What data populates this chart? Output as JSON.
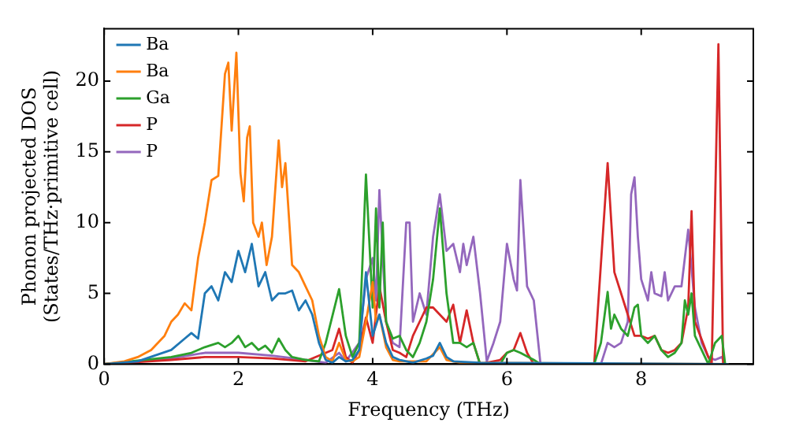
{
  "chart_data": {
    "type": "line",
    "xlabel": "Frequency (THz)",
    "ylabel": "Phonon projected DOS\n(States/THz·primitive cell)",
    "xlim": [
      0,
      9.67
    ],
    "ylim": [
      0,
      23.7
    ],
    "xticks": [
      0,
      2,
      4,
      6,
      8
    ],
    "yticks": [
      0,
      5,
      10,
      15,
      20
    ],
    "grid": false,
    "legend": "top left",
    "marker": "none",
    "line_style": "solid",
    "series": [
      {
        "name": "Ba",
        "color": "#1f77b4",
        "x": [
          0,
          0.5,
          1.0,
          1.2,
          1.3,
          1.4,
          1.5,
          1.6,
          1.7,
          1.8,
          1.9,
          2.0,
          2.1,
          2.2,
          2.3,
          2.4,
          2.5,
          2.6,
          2.7,
          2.8,
          2.9,
          3.0,
          3.1,
          3.2,
          3.3,
          3.4,
          3.5,
          3.6,
          3.7,
          3.8,
          3.9,
          4.0,
          4.1,
          4.2,
          4.3,
          4.4,
          4.6,
          4.8,
          4.9,
          5.0,
          5.1,
          5.2,
          5.6,
          9.3
        ],
        "values": [
          0,
          0.2,
          1.0,
          1.8,
          2.2,
          1.8,
          5,
          5.5,
          4.5,
          6.5,
          5.8,
          8,
          6.5,
          8.5,
          5.5,
          6.5,
          4.5,
          5,
          5,
          5.2,
          3.8,
          4.5,
          3.5,
          1.5,
          0.3,
          0.1,
          0.5,
          0.2,
          0.3,
          1,
          6.5,
          2,
          3.5,
          1.5,
          0.5,
          0.3,
          0.1,
          0.4,
          0.6,
          1.5,
          0.5,
          0.2,
          0.1,
          0
        ]
      },
      {
        "name": "Ba",
        "color": "#ff7f0e",
        "x": [
          0,
          0.3,
          0.5,
          0.7,
          0.9,
          1.0,
          1.1,
          1.2,
          1.3,
          1.4,
          1.5,
          1.6,
          1.7,
          1.8,
          1.85,
          1.9,
          1.97,
          2.03,
          2.08,
          2.13,
          2.17,
          2.22,
          2.3,
          2.35,
          2.42,
          2.5,
          2.6,
          2.65,
          2.7,
          2.8,
          2.9,
          3.0,
          3.1,
          3.2,
          3.3,
          3.4,
          3.5,
          3.6,
          3.7,
          3.8,
          3.9,
          4.0,
          4.05,
          4.1,
          4.2,
          4.3,
          4.4,
          4.8,
          5.0,
          5.1,
          5.3,
          9.3
        ],
        "values": [
          0,
          0.2,
          0.5,
          1.0,
          2,
          3,
          3.5,
          4.3,
          3.8,
          7.5,
          10,
          13,
          13.3,
          20.5,
          21.3,
          16.5,
          22,
          13.5,
          11.5,
          16,
          16.8,
          10,
          9,
          10,
          7,
          9,
          15.8,
          12.5,
          14.2,
          7,
          6.5,
          5.5,
          4.5,
          2,
          0.5,
          0.2,
          1.5,
          0.3,
          0.2,
          0.5,
          3,
          5.8,
          3,
          3.5,
          1.2,
          0.3,
          0.2,
          0.2,
          1.2,
          0.3,
          0.1,
          0
        ]
      },
      {
        "name": "Ga",
        "color": "#2ca02c",
        "x": [
          0,
          1.0,
          1.3,
          1.5,
          1.7,
          1.8,
          1.9,
          2.0,
          2.1,
          2.2,
          2.3,
          2.4,
          2.5,
          2.6,
          2.7,
          2.8,
          3.0,
          3.2,
          3.3,
          3.5,
          3.6,
          3.7,
          3.8,
          3.9,
          4.0,
          4.05,
          4.1,
          4.15,
          4.2,
          4.3,
          4.4,
          4.5,
          4.6,
          4.7,
          4.8,
          4.9,
          5.0,
          5.1,
          5.2,
          5.3,
          5.4,
          5.5,
          5.6,
          5.9,
          6.0,
          6.1,
          6.2,
          6.4,
          6.5,
          7.3,
          7.4,
          7.5,
          7.55,
          7.6,
          7.7,
          7.8,
          7.9,
          7.95,
          8.0,
          8.1,
          8.2,
          8.3,
          8.4,
          8.5,
          8.6,
          8.65,
          8.7,
          8.75,
          8.8,
          8.9,
          9.0,
          9.1,
          9.2,
          9.25
        ],
        "values": [
          0,
          0.5,
          0.8,
          1.2,
          1.5,
          1.2,
          1.5,
          2,
          1.2,
          1.5,
          1,
          1.3,
          0.8,
          1.8,
          1.0,
          0.5,
          0.3,
          0.2,
          1.5,
          5.3,
          2,
          0.5,
          1.5,
          13.4,
          4,
          11,
          4,
          10,
          3,
          1.8,
          2,
          1.0,
          0.5,
          1.5,
          3,
          6,
          11,
          5,
          1.5,
          1.5,
          1.2,
          1.5,
          0,
          0,
          0.8,
          1,
          0.8,
          0.3,
          0,
          0,
          1.5,
          5.1,
          2.5,
          3.5,
          2.5,
          2,
          4,
          4.2,
          2,
          1.5,
          2,
          1,
          0.5,
          0.8,
          1.5,
          4.5,
          3.5,
          5,
          2,
          1,
          0,
          1.5,
          2,
          0
        ]
      },
      {
        "name": "P",
        "color": "#d62728",
        "x": [
          0,
          1,
          1.5,
          2,
          2.5,
          3,
          3.4,
          3.5,
          3.6,
          3.7,
          3.8,
          3.9,
          4.0,
          4.1,
          4.2,
          4.3,
          4.4,
          4.5,
          4.6,
          4.7,
          4.8,
          4.9,
          5.0,
          5.1,
          5.2,
          5.3,
          5.4,
          5.5,
          5.6,
          5.9,
          6.0,
          6.1,
          6.2,
          6.3,
          6.4,
          7.3,
          7.5,
          7.6,
          7.7,
          7.8,
          7.9,
          8.0,
          8.1,
          8.2,
          8.3,
          8.4,
          8.5,
          8.6,
          8.7,
          8.75,
          8.8,
          9.0,
          9.05,
          9.15,
          9.22
        ],
        "values": [
          0,
          0.3,
          0.5,
          0.5,
          0.4,
          0.2,
          1,
          2.5,
          0.5,
          0.1,
          1,
          3.3,
          1.5,
          5.5,
          3,
          1,
          0.8,
          0.5,
          2,
          3,
          4,
          4,
          3.5,
          3,
          4.2,
          1.5,
          3.8,
          1.5,
          0,
          0.3,
          0.8,
          1,
          2.2,
          0.8,
          0,
          0,
          14.2,
          6.5,
          5,
          3.5,
          2,
          2,
          1.8,
          2,
          1,
          0.8,
          1,
          1.5,
          4,
          10.8,
          3,
          0.5,
          0,
          22.6,
          0
        ]
      },
      {
        "name": "P",
        "color": "#9467bd",
        "x": [
          0,
          1,
          1.5,
          2,
          2.5,
          3,
          3.3,
          3.5,
          3.6,
          3.8,
          3.9,
          4.0,
          4.05,
          4.1,
          4.2,
          4.3,
          4.4,
          4.5,
          4.55,
          4.6,
          4.7,
          4.8,
          4.9,
          5.0,
          5.1,
          5.2,
          5.3,
          5.35,
          5.4,
          5.5,
          5.6,
          5.7,
          5.8,
          5.9,
          6.0,
          6.1,
          6.15,
          6.2,
          6.3,
          6.4,
          6.5,
          7.4,
          7.5,
          7.6,
          7.7,
          7.8,
          7.85,
          7.9,
          7.95,
          8.0,
          8.1,
          8.15,
          8.2,
          8.3,
          8.35,
          8.4,
          8.5,
          8.6,
          8.7,
          8.8,
          8.9,
          9.0,
          9.1,
          9.2,
          9.25
        ],
        "values": [
          0,
          0.4,
          0.8,
          0.8,
          0.6,
          0.3,
          0.1,
          0.8,
          0.2,
          1.5,
          6,
          7.5,
          4.5,
          12.3,
          3,
          1.5,
          1.2,
          10,
          10,
          3,
          5,
          3.5,
          9,
          12,
          8,
          8.5,
          6.5,
          8.5,
          7,
          9,
          5,
          0.2,
          1.5,
          3,
          8.5,
          6,
          5.2,
          13,
          5.5,
          4.5,
          0,
          0,
          1.5,
          1.2,
          1.5,
          3,
          12,
          13.2,
          9,
          6,
          4.5,
          6.5,
          5,
          4.8,
          6.5,
          4.5,
          5.5,
          5.5,
          9.5,
          4,
          1.5,
          0.5,
          0.3,
          0.5,
          0
        ]
      }
    ]
  }
}
